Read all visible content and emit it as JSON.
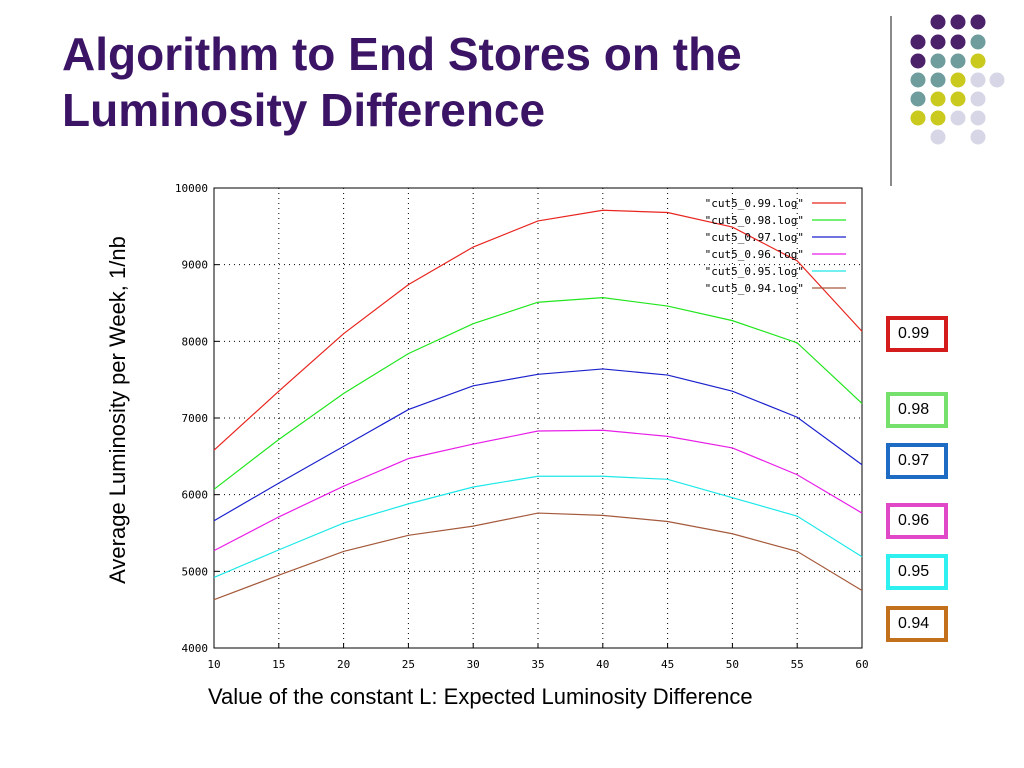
{
  "slide": {
    "title_line1": "Algorithm to End Stores on the",
    "title_line2": "Luminosity Difference"
  },
  "decor": {
    "dot_colors": [
      "#4b2169",
      "#6f9c9c",
      "#c9c91e",
      "#d6d6e6"
    ]
  },
  "chart_data": {
    "type": "line",
    "xlabel": "Value of the constant L: Expected Luminosity Difference",
    "ylabel": "Average Luminosity per Week, 1/nb",
    "x": [
      10,
      15,
      20,
      25,
      30,
      35,
      40,
      45,
      50,
      55,
      60
    ],
    "xlim": [
      10,
      60
    ],
    "ylim": [
      4000,
      10000
    ],
    "x_ticks": [
      "10",
      "15",
      "20",
      "25",
      "30",
      "35",
      "40",
      "45",
      "50",
      "55",
      "60"
    ],
    "y_ticks": [
      "4000",
      "5000",
      "6000",
      "7000",
      "8000",
      "9000",
      "10000"
    ],
    "grid": true,
    "legend_position": "top-right",
    "series": [
      {
        "name": "\"cut5_0.99.log\"",
        "color": "#e8251f",
        "values": [
          6580,
          7350,
          8100,
          8740,
          9230,
          9570,
          9710,
          9680,
          9490,
          9050,
          8130
        ]
      },
      {
        "name": "\"cut5_0.98.log\"",
        "color": "#22e61e",
        "values": [
          6070,
          6720,
          7320,
          7840,
          8230,
          8510,
          8570,
          8460,
          8270,
          7980,
          7190
        ]
      },
      {
        "name": "\"cut5_0.97.log\"",
        "color": "#1c22cc",
        "values": [
          5660,
          6150,
          6630,
          7110,
          7420,
          7570,
          7640,
          7560,
          7350,
          7010,
          6390
        ]
      },
      {
        "name": "\"cut5_0.96.log\"",
        "color": "#e81ee8",
        "values": [
          5270,
          5710,
          6110,
          6470,
          6660,
          6830,
          6840,
          6760,
          6610,
          6260,
          5760
        ]
      },
      {
        "name": "\"cut5_0.95.log\"",
        "color": "#1ee8e8",
        "values": [
          4920,
          5280,
          5630,
          5880,
          6100,
          6240,
          6240,
          6200,
          5960,
          5720,
          5190
        ]
      },
      {
        "name": "\"cut5_0.94.log\"",
        "color": "#a55a3c",
        "values": [
          4630,
          4950,
          5260,
          5470,
          5590,
          5760,
          5730,
          5650,
          5490,
          5260,
          4750
        ]
      }
    ]
  },
  "cut_boxes": [
    {
      "label": "0.99",
      "color": "#d51c1c"
    },
    {
      "label": "0.98",
      "color": "#76e06c"
    },
    {
      "label": "0.97",
      "color": "#1e6bc4"
    },
    {
      "label": "0.96",
      "color": "#e048c8"
    },
    {
      "label": "0.95",
      "color": "#2ef0f0"
    },
    {
      "label": "0.94",
      "color": "#c2701c"
    }
  ]
}
